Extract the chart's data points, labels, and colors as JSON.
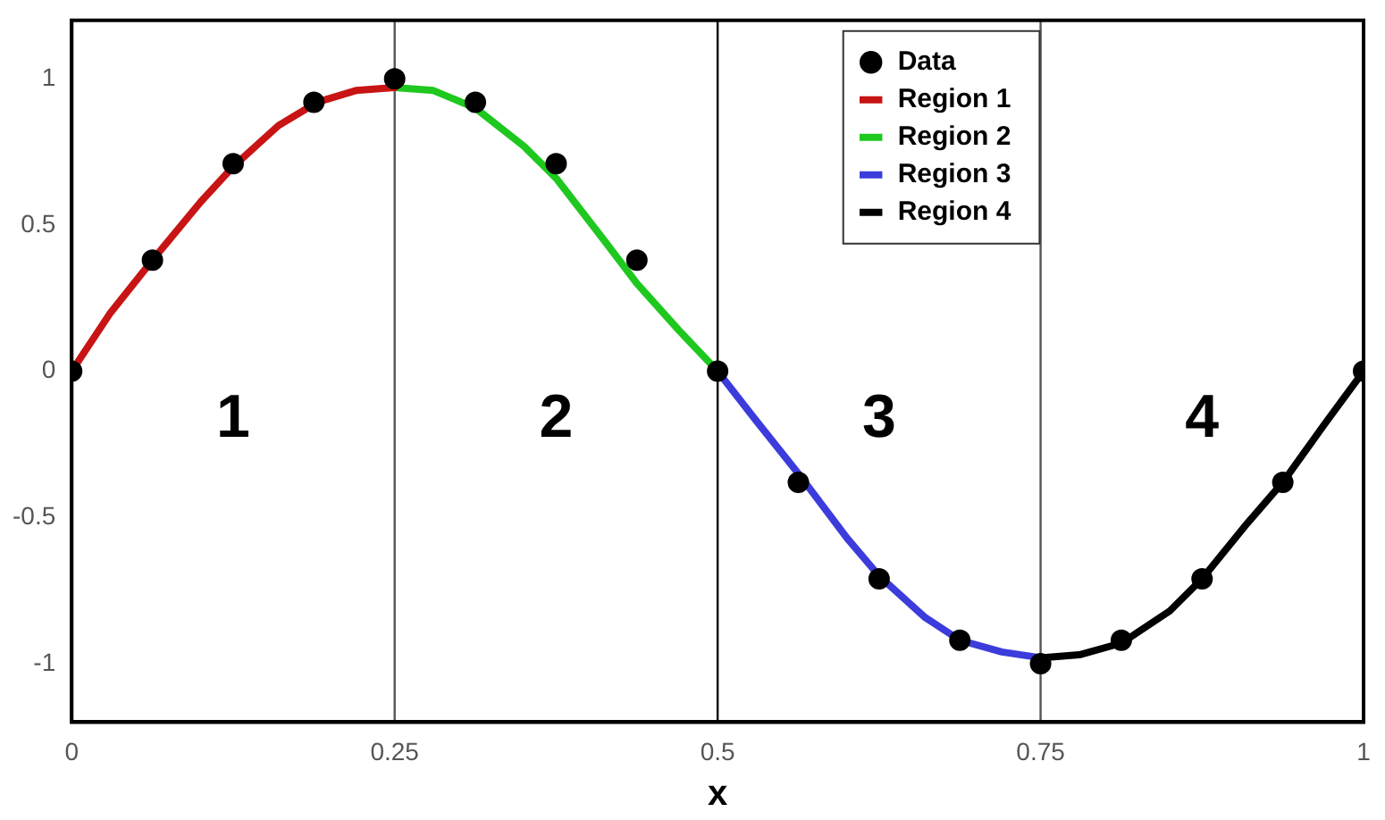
{
  "chart_data": {
    "type": "line",
    "xlabel": "x",
    "xlim": [
      0,
      1
    ],
    "ylim": [
      -1.2,
      1.2
    ],
    "xticks": [
      0,
      0.25,
      0.5,
      0.75,
      1
    ],
    "yticks": [
      -1,
      -0.5,
      0,
      0.5,
      1
    ],
    "grid": false,
    "legend": "top right",
    "series": [
      {
        "name": "Data",
        "type": "scatter",
        "marker": "circle",
        "color": "#000000",
        "x": [
          0,
          0.0625,
          0.125,
          0.1875,
          0.25,
          0.3125,
          0.375,
          0.4375,
          0.5,
          0.5625,
          0.625,
          0.6875,
          0.75,
          0.8125,
          0.875,
          0.9375,
          1
        ],
        "values": [
          0,
          0.38,
          0.71,
          0.92,
          1,
          0.92,
          0.71,
          0.38,
          0,
          -0.38,
          -0.71,
          -0.92,
          -1,
          -0.92,
          -0.71,
          -0.38,
          0
        ]
      },
      {
        "name": "Region 1",
        "type": "line",
        "color": "#c81414",
        "x": [
          0,
          0.03,
          0.0625,
          0.1,
          0.125,
          0.16,
          0.19,
          0.22,
          0.25
        ],
        "values": [
          0,
          0.2,
          0.38,
          0.58,
          0.7,
          0.84,
          0.92,
          0.96,
          0.97
        ]
      },
      {
        "name": "Region 2",
        "type": "line",
        "color": "#1ec81e",
        "x": [
          0.25,
          0.28,
          0.3125,
          0.35,
          0.375,
          0.41,
          0.4375,
          0.47,
          0.5
        ],
        "values": [
          0.97,
          0.96,
          0.9,
          0.77,
          0.66,
          0.46,
          0.3,
          0.14,
          0
        ]
      },
      {
        "name": "Region 3",
        "type": "line",
        "color": "#3c3cdc",
        "x": [
          0.5,
          0.53,
          0.5625,
          0.6,
          0.625,
          0.66,
          0.6875,
          0.72,
          0.75
        ],
        "values": [
          0,
          -0.17,
          -0.35,
          -0.57,
          -0.7,
          -0.84,
          -0.92,
          -0.96,
          -0.98
        ]
      },
      {
        "name": "Region 4",
        "type": "line",
        "color": "#000000",
        "x": [
          0.75,
          0.78,
          0.8125,
          0.85,
          0.875,
          0.91,
          0.9375,
          0.97,
          1
        ],
        "values": [
          -0.98,
          -0.97,
          -0.93,
          -0.82,
          -0.71,
          -0.52,
          -0.38,
          -0.18,
          0
        ]
      }
    ],
    "ref_lines": [
      {
        "axis": "x",
        "value": 0.25,
        "color": "#555555"
      },
      {
        "axis": "x",
        "value": 0.5,
        "color": "#000000"
      },
      {
        "axis": "x",
        "value": 0.75,
        "color": "#555555"
      }
    ],
    "annotations": [
      "1",
      "2",
      "3",
      "4"
    ]
  }
}
